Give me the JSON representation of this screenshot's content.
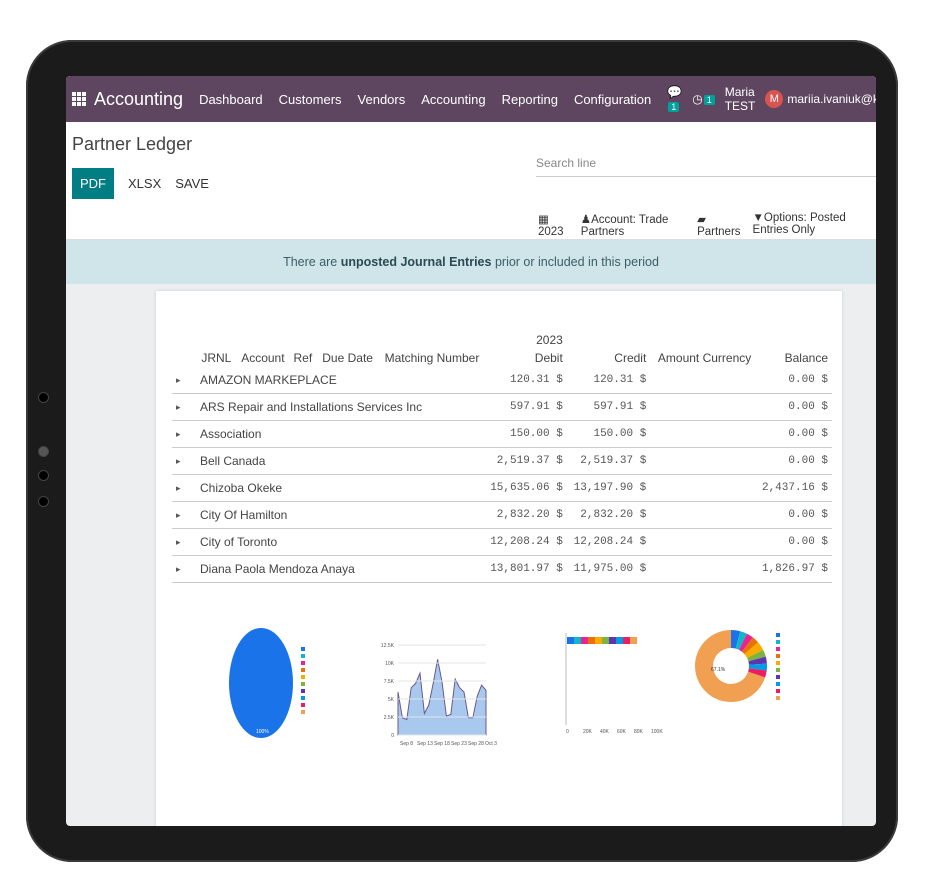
{
  "navbar": {
    "app": "Accounting",
    "menu": [
      "Dashboard",
      "Customers",
      "Vendors",
      "Accounting",
      "Reporting",
      "Configuration"
    ],
    "messages_count": "1",
    "activities_count": "1",
    "company": "Maria TEST",
    "avatar_letter": "M",
    "user": "mariia.ivaniuk@ko"
  },
  "control_panel": {
    "title": "Partner Ledger",
    "buttons": {
      "pdf": "PDF",
      "xlsx": "XLSX",
      "save": "SAVE"
    },
    "search_placeholder": "Search line",
    "filters": {
      "date": "2023",
      "account": "Account: Trade Partners",
      "partners": "Partners",
      "options": "Options: Posted Entries Only"
    }
  },
  "alert": {
    "prefix": "There are ",
    "link": "unposted Journal Entries",
    "suffix": " prior or included in this period"
  },
  "report": {
    "period": "2023",
    "columns": [
      "JRNL",
      "Account",
      "Ref",
      "Due Date",
      "Matching Number",
      "Debit",
      "Credit",
      "Amount Currency",
      "Balance"
    ],
    "rows": [
      {
        "partner": "AMAZON MARKEPLACE",
        "debit": "120.31 $",
        "credit": "120.31 $",
        "balance": "0.00 $"
      },
      {
        "partner": "ARS Repair and Installations Services Inc",
        "debit": "597.91 $",
        "credit": "597.91 $",
        "balance": "0.00 $"
      },
      {
        "partner": "Association",
        "debit": "150.00 $",
        "credit": "150.00 $",
        "balance": "0.00 $"
      },
      {
        "partner": "Bell Canada",
        "debit": "2,519.37 $",
        "credit": "2,519.37 $",
        "balance": "0.00 $"
      },
      {
        "partner": "Chizoba Okeke",
        "debit": "15,635.06 $",
        "credit": "13,197.90 $",
        "balance": "2,437.16 $"
      },
      {
        "partner": "City Of Hamilton",
        "debit": "2,832.20 $",
        "credit": "2,832.20 $",
        "balance": "0.00 $"
      },
      {
        "partner": "City of Toronto",
        "debit": "12,208.24 $",
        "credit": "12,208.24 $",
        "balance": "0.00 $"
      },
      {
        "partner": "Diana Paola Mendoza Anaya",
        "debit": "13,801.97 $",
        "credit": "11,975.00 $",
        "balance": "1,826.97 $"
      }
    ]
  },
  "charts": {
    "pie": {
      "label": "100%",
      "color": "#1a73e8"
    },
    "line": {
      "yticks": [
        "12.5K",
        "10K",
        "7.5K",
        "5K",
        "2.5K",
        "0"
      ],
      "xticks": [
        "Sep 8",
        "Sep 13",
        "Sep 18",
        "Sep 23",
        "Sep 28",
        "Oct 3"
      ],
      "color": "#a8c8ee"
    },
    "bar": {
      "xticks": [
        "0",
        "20K",
        "40K",
        "60K",
        "80K",
        "100K"
      ]
    },
    "donut": {
      "label": "67.1%",
      "colors": [
        "#1a73e8",
        "#12b5cb",
        "#e52592",
        "#e8710a",
        "#f9ab00",
        "#7cb342",
        "#5e35b1",
        "#039be5",
        "#e91e63",
        "#f0a050"
      ]
    }
  }
}
